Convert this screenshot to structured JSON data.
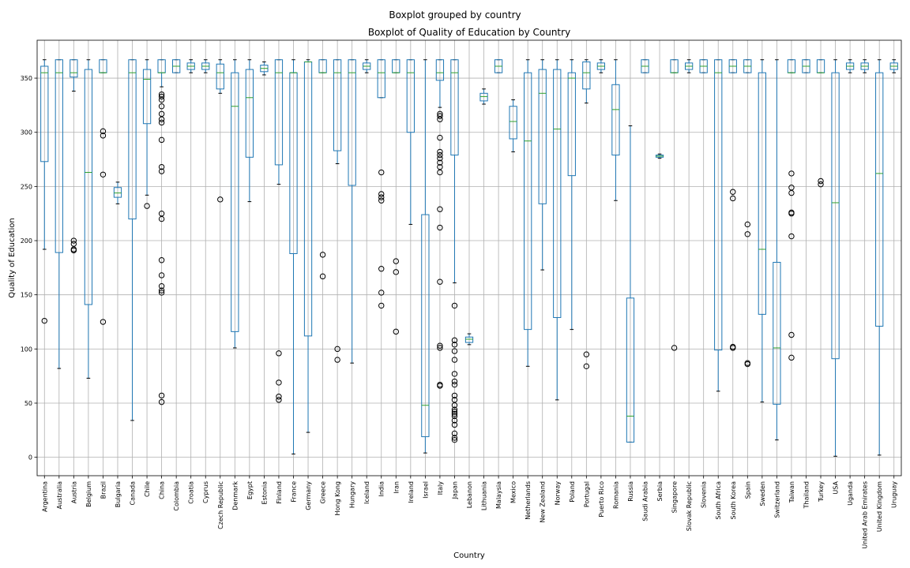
{
  "chart_data": {
    "type": "boxplot",
    "suptitle": "Boxplot grouped by country",
    "title": "Boxplot of Quality of Education by Country",
    "xlabel": "Country",
    "ylabel": "Quality of Education",
    "ylim": [
      -17,
      385
    ],
    "yticks": [
      0,
      50,
      100,
      150,
      200,
      250,
      300,
      350
    ],
    "grid": true,
    "colors": {
      "box": "#1f77b4",
      "median": "#2ca02c",
      "whisker": "#1f77b4",
      "cap": "#000000",
      "flier": "#000000",
      "grid": "#b0b0b0"
    },
    "categories": [
      "Argentina",
      "Australia",
      "Austria",
      "Belgium",
      "Brazil",
      "Bulgaria",
      "Canada",
      "Chile",
      "China",
      "Colombia",
      "Croatia",
      "Cyprus",
      "Czech Republic",
      "Denmark",
      "Egypt",
      "Estonia",
      "Finland",
      "France",
      "Germany",
      "Greece",
      "Hong Kong",
      "Hungary",
      "Iceland",
      "India",
      "Iran",
      "Ireland",
      "Israel",
      "Italy",
      "Japan",
      "Lebanon",
      "Lithuania",
      "Malaysia",
      "Mexico",
      "Netherlands",
      "New Zealand",
      "Norway",
      "Poland",
      "Portugal",
      "Puerto Rico",
      "Romania",
      "Russia",
      "Saudi Arabia",
      "Serbia",
      "Singapore",
      "Slovak Republic",
      "Slovenia",
      "South Africa",
      "South Korea",
      "Spain",
      "Sweden",
      "Switzerland",
      "Taiwan",
      "Thailand",
      "Turkey",
      "USA",
      "Uganda",
      "United Arab Emirates",
      "United Kingdom",
      "Uruguay"
    ],
    "boxes": [
      {
        "whislo": 192,
        "q1": 273,
        "med": 355,
        "q3": 361,
        "whishi": 367,
        "fliers": [
          126
        ]
      },
      {
        "whislo": 82,
        "q1": 189,
        "med": 355,
        "q3": 367,
        "whishi": 367,
        "fliers": []
      },
      {
        "whislo": 338,
        "q1": 351,
        "med": 355,
        "q3": 367,
        "whishi": 367,
        "fliers": [
          191,
          192,
          197,
          200
        ]
      },
      {
        "whislo": 73,
        "q1": 141,
        "med": 263,
        "q3": 358,
        "whishi": 367,
        "fliers": []
      },
      {
        "whislo": 355,
        "q1": 355,
        "med": 355,
        "q3": 367,
        "whishi": 367,
        "fliers": [
          125,
          261,
          297,
          301
        ]
      },
      {
        "whislo": 234,
        "q1": 240,
        "med": 244,
        "q3": 249,
        "whishi": 254,
        "fliers": []
      },
      {
        "whislo": 34,
        "q1": 220,
        "med": 355,
        "q3": 367,
        "whishi": 367,
        "fliers": []
      },
      {
        "whislo": 242,
        "q1": 308,
        "med": 349,
        "q3": 358,
        "whishi": 367,
        "fliers": [
          232
        ]
      },
      {
        "whislo": 342,
        "q1": 355,
        "med": 355,
        "q3": 367,
        "whishi": 367,
        "fliers": [
          51,
          57,
          152,
          154,
          158,
          168,
          182,
          220,
          225,
          264,
          268,
          293,
          309,
          312,
          317,
          324,
          330,
          333,
          335
        ]
      },
      {
        "whislo": 355,
        "q1": 355,
        "med": 361,
        "q3": 367,
        "whishi": 367,
        "fliers": []
      },
      {
        "whislo": 355,
        "q1": 358,
        "med": 361,
        "q3": 364,
        "whishi": 367,
        "fliers": []
      },
      {
        "whislo": 355,
        "q1": 358,
        "med": 361,
        "q3": 364,
        "whishi": 367,
        "fliers": []
      },
      {
        "whislo": 336,
        "q1": 340,
        "med": 355,
        "q3": 363,
        "whishi": 367,
        "fliers": [
          238
        ]
      },
      {
        "whislo": 101,
        "q1": 116,
        "med": 324,
        "q3": 355,
        "whishi": 367,
        "fliers": []
      },
      {
        "whislo": 236,
        "q1": 277,
        "med": 332,
        "q3": 358,
        "whishi": 367,
        "fliers": []
      },
      {
        "whislo": 353,
        "q1": 356,
        "med": 359,
        "q3": 362,
        "whishi": 365,
        "fliers": []
      },
      {
        "whislo": 252,
        "q1": 270,
        "med": 355,
        "q3": 367,
        "whishi": 367,
        "fliers": [
          53,
          56,
          69,
          96
        ]
      },
      {
        "whislo": 3,
        "q1": 188,
        "med": 355,
        "q3": 355,
        "whishi": 367,
        "fliers": []
      },
      {
        "whislo": 23,
        "q1": 112,
        "med": 365,
        "q3": 365,
        "whishi": 367,
        "fliers": []
      },
      {
        "whislo": 355,
        "q1": 355,
        "med": 355,
        "q3": 367,
        "whishi": 367,
        "fliers": [
          167,
          187
        ]
      },
      {
        "whislo": 271,
        "q1": 283,
        "med": 355,
        "q3": 367,
        "whishi": 367,
        "fliers": [
          90,
          100
        ]
      },
      {
        "whislo": 87,
        "q1": 251,
        "med": 355,
        "q3": 367,
        "whishi": 367,
        "fliers": []
      },
      {
        "whislo": 355,
        "q1": 358,
        "med": 361,
        "q3": 364,
        "whishi": 367,
        "fliers": []
      },
      {
        "whislo": 332,
        "q1": 332,
        "med": 355,
        "q3": 367,
        "whishi": 367,
        "fliers": [
          140,
          152,
          174,
          237,
          240,
          243,
          263
        ]
      },
      {
        "whislo": 355,
        "q1": 355,
        "med": 355,
        "q3": 367,
        "whishi": 367,
        "fliers": [
          116,
          171,
          181
        ]
      },
      {
        "whislo": 215,
        "q1": 300,
        "med": 355,
        "q3": 367,
        "whishi": 367,
        "fliers": []
      },
      {
        "whislo": 4,
        "q1": 19,
        "med": 48,
        "q3": 224,
        "whishi": 367,
        "fliers": []
      },
      {
        "whislo": 323,
        "q1": 348,
        "med": 355,
        "q3": 367,
        "whishi": 367,
        "fliers": [
          66,
          67,
          101,
          103,
          162,
          212,
          229,
          263,
          268,
          272,
          276,
          279,
          282,
          295,
          312,
          315,
          317
        ]
      },
      {
        "whislo": 161,
        "q1": 279,
        "med": 355,
        "q3": 367,
        "whishi": 367,
        "fliers": [
          16,
          18,
          22,
          30,
          34,
          38,
          40,
          42,
          44,
          48,
          53,
          57,
          67,
          70,
          77,
          90,
          98,
          104,
          108,
          140
        ]
      },
      {
        "whislo": 104,
        "q1": 106,
        "med": 109,
        "q3": 111,
        "whishi": 114,
        "fliers": []
      },
      {
        "whislo": 326,
        "q1": 329,
        "med": 333,
        "q3": 336,
        "whishi": 340,
        "fliers": []
      },
      {
        "whislo": 355,
        "q1": 355,
        "med": 361,
        "q3": 367,
        "whishi": 367,
        "fliers": []
      },
      {
        "whislo": 282,
        "q1": 294,
        "med": 310,
        "q3": 324,
        "whishi": 330,
        "fliers": []
      },
      {
        "whislo": 84,
        "q1": 118,
        "med": 292,
        "q3": 355,
        "whishi": 367,
        "fliers": []
      },
      {
        "whislo": 173,
        "q1": 234,
        "med": 336,
        "q3": 358,
        "whishi": 367,
        "fliers": []
      },
      {
        "whislo": 53,
        "q1": 129,
        "med": 303,
        "q3": 358,
        "whishi": 367,
        "fliers": []
      },
      {
        "whislo": 118,
        "q1": 260,
        "med": 350,
        "q3": 355,
        "whishi": 367,
        "fliers": []
      },
      {
        "whislo": 327,
        "q1": 340,
        "med": 355,
        "q3": 365,
        "whishi": 367,
        "fliers": [
          84,
          95
        ]
      },
      {
        "whislo": 355,
        "q1": 358,
        "med": 361,
        "q3": 364,
        "whishi": 367,
        "fliers": []
      },
      {
        "whislo": 237,
        "q1": 279,
        "med": 321,
        "q3": 344,
        "whishi": 367,
        "fliers": []
      },
      {
        "whislo": 14,
        "q1": 14,
        "med": 38,
        "q3": 147,
        "whishi": 306,
        "fliers": []
      },
      {
        "whislo": 355,
        "q1": 355,
        "med": 361,
        "q3": 367,
        "whishi": 367,
        "fliers": []
      },
      {
        "whislo": 276,
        "q1": 277,
        "med": 278,
        "q3": 279,
        "whishi": 280,
        "fliers": []
      },
      {
        "whislo": 355,
        "q1": 355,
        "med": 355,
        "q3": 367,
        "whishi": 367,
        "fliers": [
          101
        ]
      },
      {
        "whislo": 355,
        "q1": 358,
        "med": 361,
        "q3": 364,
        "whishi": 367,
        "fliers": []
      },
      {
        "whislo": 355,
        "q1": 355,
        "med": 361,
        "q3": 367,
        "whishi": 367,
        "fliers": []
      },
      {
        "whislo": 61,
        "q1": 99,
        "med": 355,
        "q3": 367,
        "whishi": 367,
        "fliers": []
      },
      {
        "whislo": 355,
        "q1": 355,
        "med": 361,
        "q3": 367,
        "whishi": 367,
        "fliers": [
          101,
          102,
          239,
          245
        ]
      },
      {
        "whislo": 355,
        "q1": 355,
        "med": 361,
        "q3": 367,
        "whishi": 367,
        "fliers": [
          86,
          87,
          206,
          215
        ]
      },
      {
        "whislo": 51,
        "q1": 132,
        "med": 192,
        "q3": 355,
        "whishi": 367,
        "fliers": []
      },
      {
        "whislo": 16,
        "q1": 49,
        "med": 101,
        "q3": 180,
        "whishi": 367,
        "fliers": []
      },
      {
        "whislo": 355,
        "q1": 355,
        "med": 355,
        "q3": 367,
        "whishi": 367,
        "fliers": [
          92,
          113,
          204,
          225,
          226,
          244,
          249,
          262
        ]
      },
      {
        "whislo": 355,
        "q1": 355,
        "med": 361,
        "q3": 367,
        "whishi": 367,
        "fliers": []
      },
      {
        "whislo": 355,
        "q1": 355,
        "med": 355,
        "q3": 367,
        "whishi": 367,
        "fliers": [
          252,
          255
        ]
      },
      {
        "whislo": 1,
        "q1": 91,
        "med": 235,
        "q3": 355,
        "whishi": 367,
        "fliers": []
      },
      {
        "whislo": 355,
        "q1": 358,
        "med": 361,
        "q3": 364,
        "whishi": 367,
        "fliers": []
      },
      {
        "whislo": 355,
        "q1": 358,
        "med": 361,
        "q3": 364,
        "whishi": 367,
        "fliers": []
      },
      {
        "whislo": 2,
        "q1": 121,
        "med": 262,
        "q3": 355,
        "whishi": 367,
        "fliers": []
      },
      {
        "whislo": 355,
        "q1": 358,
        "med": 361,
        "q3": 364,
        "whishi": 367,
        "fliers": []
      }
    ]
  }
}
